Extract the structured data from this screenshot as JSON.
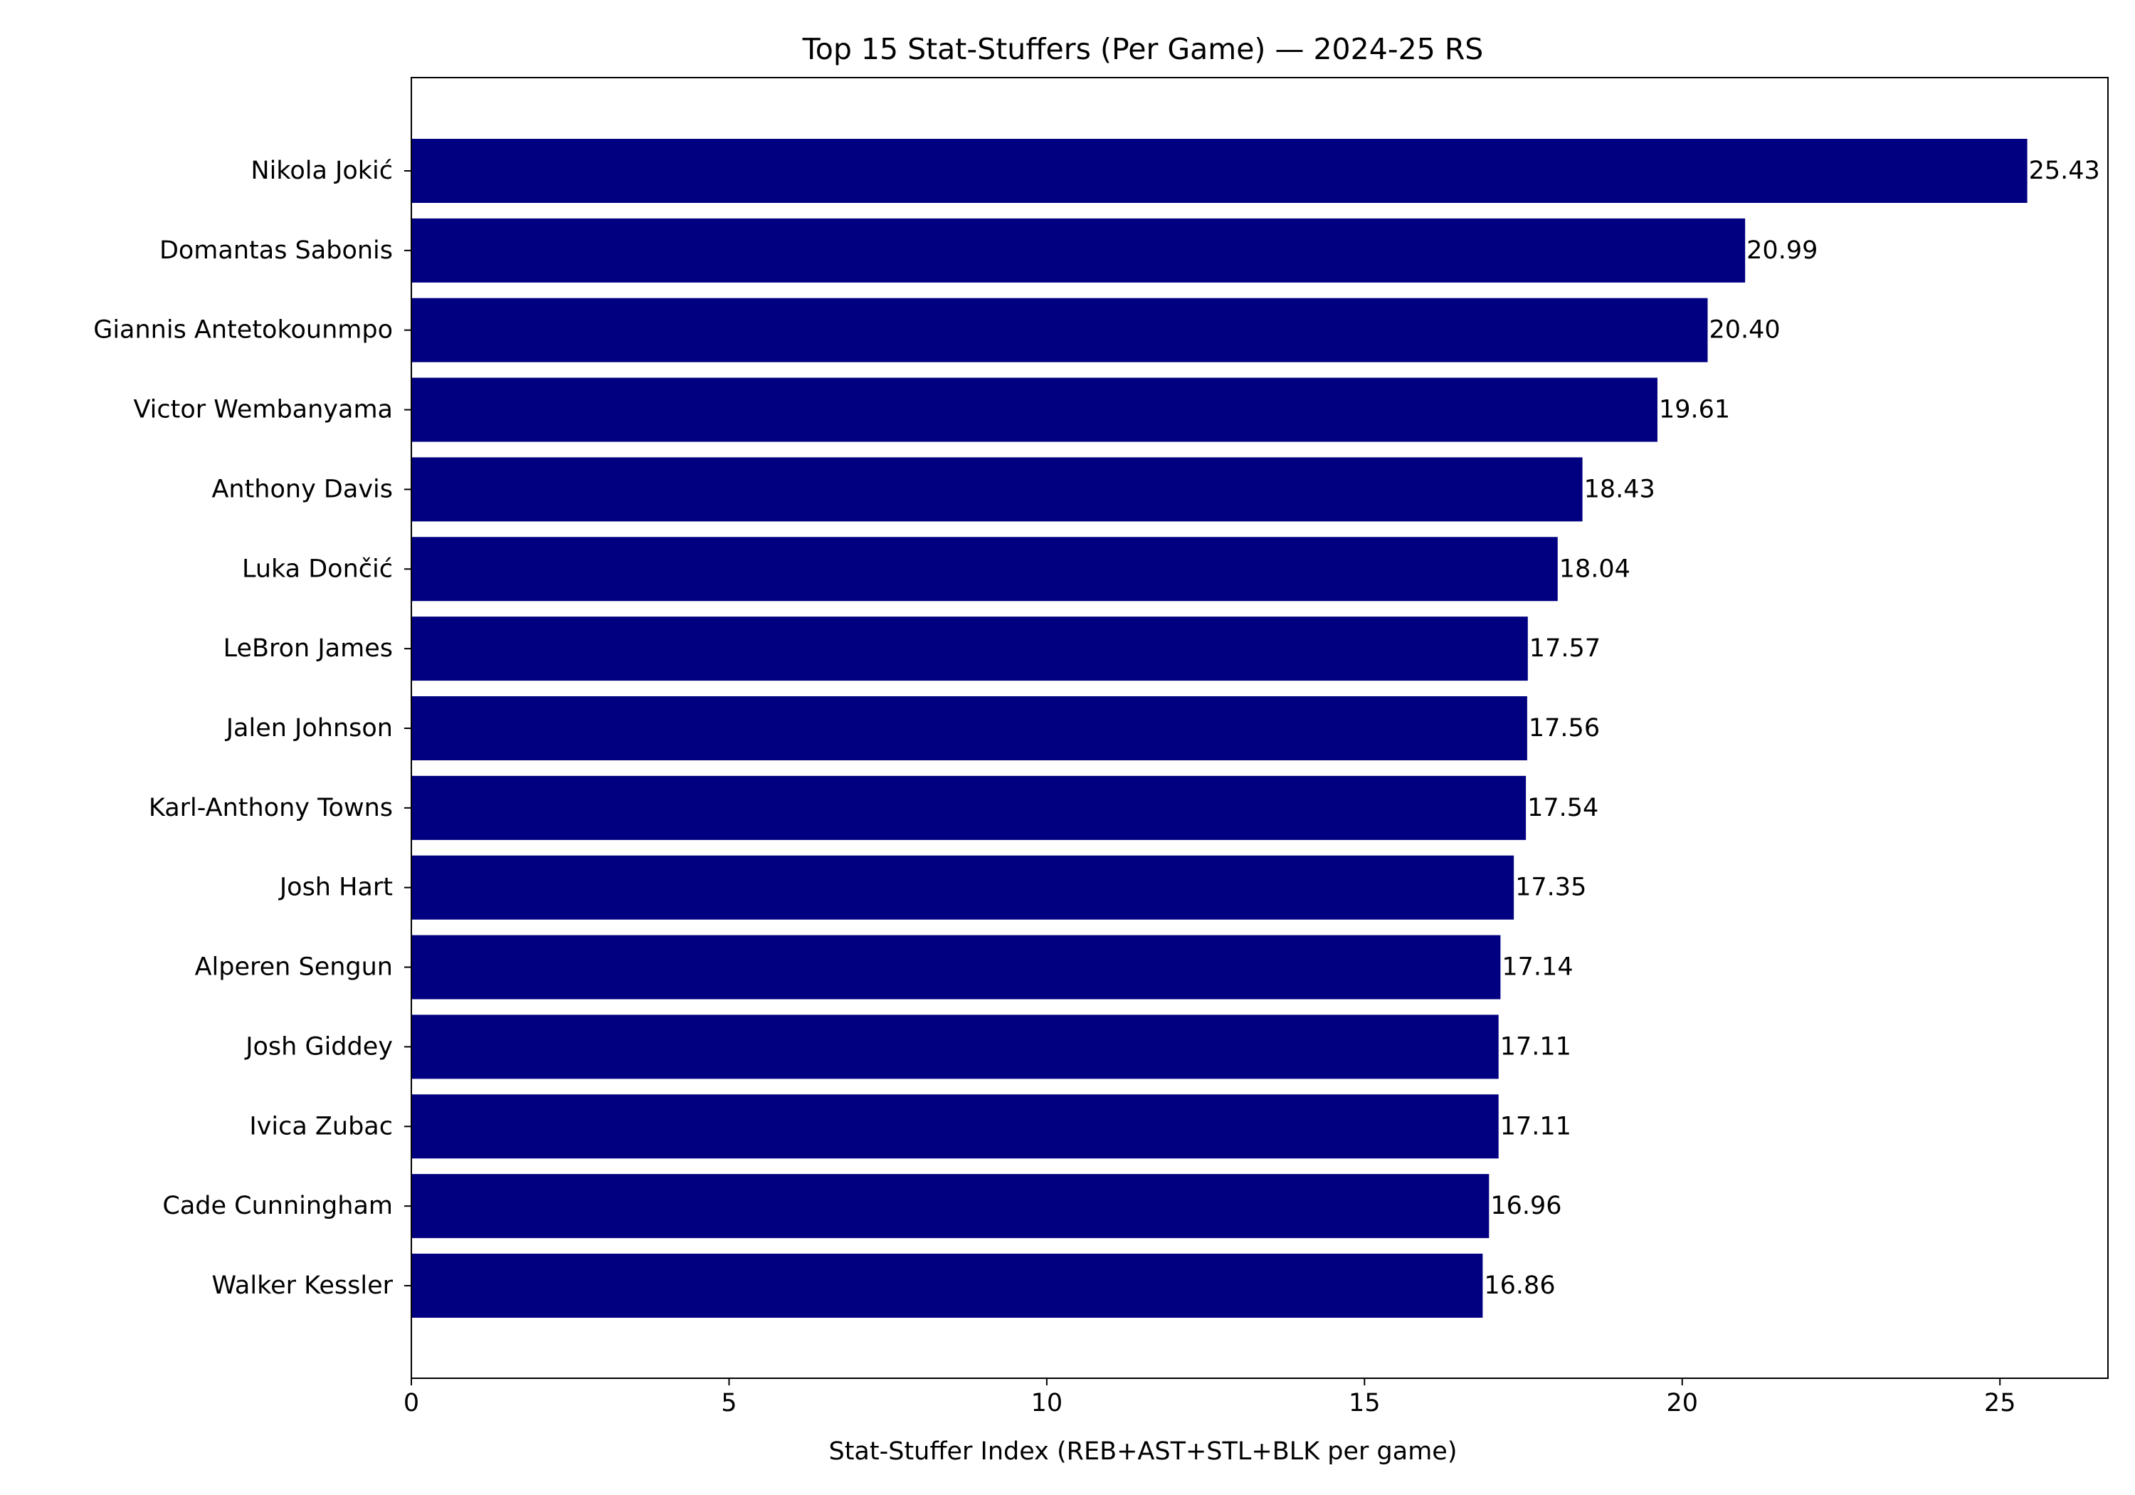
{
  "chart_data": {
    "type": "bar",
    "orientation": "horizontal",
    "title": "Top 15 Stat-Stuffers (Per Game) — 2024-25 RS",
    "xlabel": "Stat-Stuffer Index (REB+AST+STL+BLK per game)",
    "ylabel": "",
    "xlim": [
      0,
      26.7
    ],
    "xticks": [
      0,
      5,
      10,
      15,
      20,
      25
    ],
    "xtick_labels": [
      "0",
      "5",
      "10",
      "15",
      "20",
      "25"
    ],
    "grid": false,
    "bar_color": "#000080",
    "categories": [
      "Nikola Jokić",
      "Domantas Sabonis",
      "Giannis Antetokounmpo",
      "Victor Wembanyama",
      "Anthony Davis",
      "Luka Dončić",
      "LeBron James",
      "Jalen Johnson",
      "Karl-Anthony Towns",
      "Josh Hart",
      "Alperen Sengun",
      "Josh Giddey",
      "Ivica Zubac",
      "Cade Cunningham",
      "Walker Kessler"
    ],
    "values": [
      25.43,
      20.99,
      20.4,
      19.61,
      18.43,
      18.04,
      17.57,
      17.56,
      17.54,
      17.35,
      17.14,
      17.11,
      17.11,
      16.96,
      16.86
    ],
    "value_labels": [
      "25.43",
      "20.99",
      "20.40",
      "19.61",
      "18.43",
      "18.04",
      "17.57",
      "17.56",
      "17.54",
      "17.35",
      "17.14",
      "17.11",
      "17.11",
      "16.96",
      "16.86"
    ]
  }
}
